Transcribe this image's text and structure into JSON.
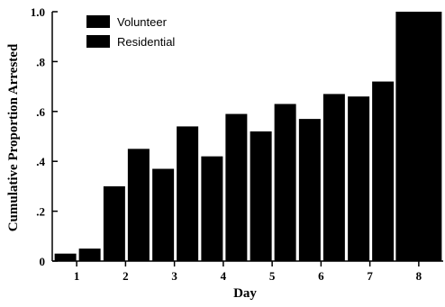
{
  "chart_data": {
    "type": "bar",
    "xlabel": "Day",
    "ylabel": "Cumulative Proportion Arrested",
    "ylim": [
      0,
      1.0
    ],
    "yticks": [
      0,
      0.2,
      0.4,
      0.6,
      0.8,
      1.0
    ],
    "ytick_labels": [
      "0",
      ".2",
      ".4",
      ".6",
      ".8",
      "1.0"
    ],
    "categories": [
      "1",
      "2",
      "3",
      "4",
      "5",
      "6",
      "7",
      "8"
    ],
    "series": [
      {
        "name": "Volunteer",
        "values": [
          0.03,
          0.3,
          0.37,
          0.42,
          0.52,
          0.57,
          0.66,
          1.0
        ]
      },
      {
        "name": "Residential",
        "values": [
          0.05,
          0.45,
          0.54,
          0.59,
          0.63,
          0.67,
          0.72,
          1.0
        ]
      }
    ],
    "colors": [
      "#000000",
      "#000000"
    ],
    "grid": false,
    "legend_position": "top-left"
  }
}
